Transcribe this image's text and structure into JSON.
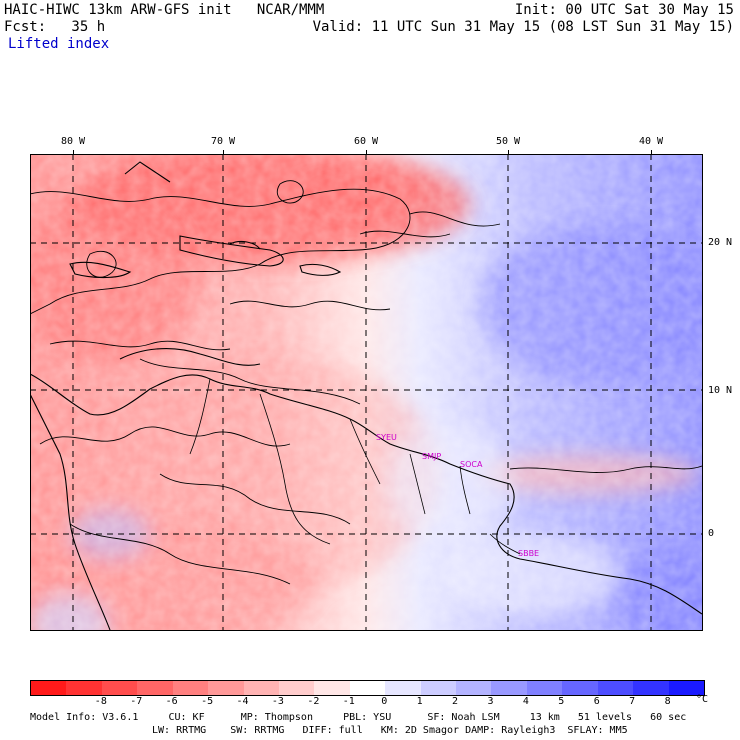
{
  "header": {
    "line1_left": "HAIC-HIWC 13km ARW-GFS init   NCAR/MMM",
    "line1_right": "Init: 00 UTC Sat 30 May 15",
    "line2_left": "Fcst:   35 h",
    "line2_right": "Valid: 11 UTC Sun 31 May 15 (08 LST Sun 31 May 15)",
    "field": "Lifted index"
  },
  "map": {
    "lon_labels": [
      "80 W",
      "70 W",
      "60 W",
      "50 W",
      "40 W"
    ],
    "lat_labels": [
      "20 N",
      "10 N",
      "0"
    ],
    "stations": [
      "SYEU",
      "SMJP",
      "SOCA",
      "SBBE"
    ]
  },
  "colorbar": {
    "labels": [
      "-8",
      "-7",
      "-6",
      "-5",
      "-4",
      "-3",
      "-2",
      "-1",
      "0",
      "1",
      "2",
      "3",
      "4",
      "5",
      "6",
      "7",
      "8"
    ],
    "unit": "°C",
    "colors": [
      "#ff1a1a",
      "#ff3333",
      "#ff4d4d",
      "#ff6666",
      "#ff8080",
      "#ff9999",
      "#ffb3b3",
      "#ffcccc",
      "#ffe6e6",
      "#ffffff",
      "#e6e6ff",
      "#ccccff",
      "#b3b3ff",
      "#9999ff",
      "#8080ff",
      "#6666ff",
      "#4d4dff",
      "#3333ff",
      "#1a1aff"
    ]
  },
  "footer": {
    "line1": "Model Info: V3.6.1     CU: KF      MP: Thompson     PBL: YSU      SF: Noah LSM     13 km   51 levels   60 sec",
    "line2": "LW: RRTMG    SW: RRTMG   DIFF: full   KM: 2D Smagor DAMP: Rayleigh3  SFLAY: MM5"
  }
}
